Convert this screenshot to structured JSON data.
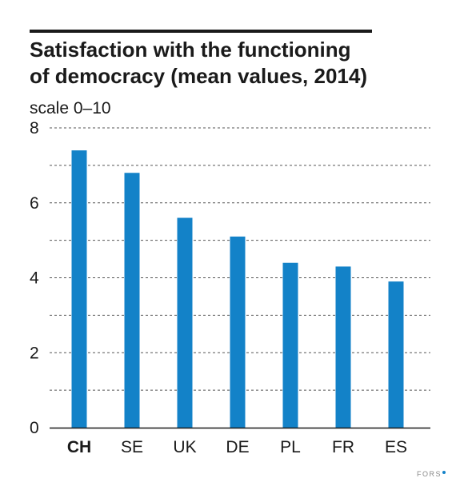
{
  "title_lines": [
    "Satisfaction with the functioning",
    "of democracy (mean values, 2014)"
  ],
  "scale_label": "scale 0–10",
  "footer_logo": "FORS",
  "colors": {
    "bar": "#1382c8",
    "text": "#1a1a1a",
    "grid": "#555555"
  },
  "chart_data": {
    "type": "bar",
    "title": "Satisfaction with the functioning of democracy (mean values, 2014)",
    "ylabel": "scale 0–10",
    "categories": [
      "CH",
      "SE",
      "UK",
      "DE",
      "PL",
      "FR",
      "ES"
    ],
    "bold_categories": [
      "CH"
    ],
    "values": [
      7.4,
      6.8,
      5.6,
      5.1,
      4.4,
      4.3,
      3.9
    ],
    "ylim": [
      0,
      8
    ],
    "yticks": [
      0,
      2,
      4,
      6,
      8
    ],
    "gridlines": [
      1,
      2,
      3,
      4,
      5,
      6,
      7,
      8
    ],
    "grid": true,
    "legend": "none"
  }
}
